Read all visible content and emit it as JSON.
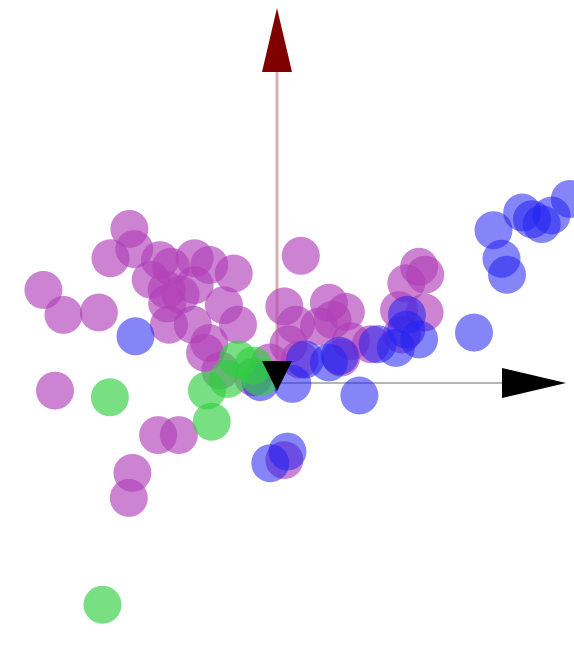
{
  "chart_data": {
    "type": "scatter",
    "title": "",
    "xlabel": "",
    "ylabel": "",
    "grid": false,
    "xlim": [
      -4.2,
      4.8
    ],
    "ylim": [
      -4.2,
      6.0
    ],
    "axes": {
      "x_arrow_color": "#000000",
      "y_arrow_color": "#800000",
      "y_arrow_shaft_color": "#d8b0b0",
      "origin_marker_color": "#000000"
    },
    "series": [
      {
        "color": "#b040b8",
        "opacity": 0.65,
        "points": [
          [
            -2.42,
            2.46
          ],
          [
            -2.34,
            2.13
          ],
          [
            -2.73,
            1.98
          ],
          [
            -1.92,
            1.95
          ],
          [
            -1.74,
            1.84
          ],
          [
            -1.35,
            1.98
          ],
          [
            -1.11,
            1.87
          ],
          [
            -0.71,
            1.73
          ],
          [
            -3.83,
            1.46
          ],
          [
            -3.5,
            1.05
          ],
          [
            -2.92,
            1.09
          ],
          [
            -2.07,
            1.63
          ],
          [
            -1.81,
            1.46
          ],
          [
            -1.58,
            1.38
          ],
          [
            -1.35,
            1.54
          ],
          [
            -1.8,
            1.24
          ],
          [
            -1.77,
            0.89
          ],
          [
            -0.87,
            1.21
          ],
          [
            -1.38,
            0.89
          ],
          [
            -0.64,
            0.89
          ],
          [
            -1.11,
            0.59
          ],
          [
            -1.18,
            0.43
          ],
          [
            -0.93,
            0.14
          ],
          [
            -0.39,
            0.03
          ],
          [
            -0.12,
            0.27
          ],
          [
            0.39,
            2.02
          ],
          [
            0.12,
            1.19
          ],
          [
            0.31,
            0.89
          ],
          [
            0.19,
            0.57
          ],
          [
            0.37,
            0.32
          ],
          [
            0.69,
            0.86
          ],
          [
            0.91,
            0.97
          ],
          [
            0.85,
            1.25
          ],
          [
            1.13,
            1.1
          ],
          [
            1.21,
            0.62
          ],
          [
            1.05,
            0.35
          ],
          [
            1.54,
            0.57
          ],
          [
            2.05,
            0.73
          ],
          [
            2.0,
            1.13
          ],
          [
            2.12,
            1.57
          ],
          [
            2.43,
            1.71
          ],
          [
            2.42,
            1.09
          ],
          [
            2.33,
            1.84
          ],
          [
            -3.64,
            -0.19
          ],
          [
            -1.61,
            -0.92
          ],
          [
            -1.95,
            -0.92
          ],
          [
            -2.37,
            -1.54
          ],
          [
            -2.43,
            -1.95
          ],
          [
            0.12,
            -1.33
          ]
        ]
      },
      {
        "color": "#2020f0",
        "opacity": 0.55,
        "points": [
          [
            -2.32,
            0.7
          ],
          [
            0.46,
            0.32
          ],
          [
            0.85,
            0.27
          ],
          [
            1.03,
            0.38
          ],
          [
            1.65,
            0.57
          ],
          [
            1.95,
            0.51
          ],
          [
            2.12,
            0.81
          ],
          [
            2.33,
            0.65
          ],
          [
            2.13,
            1.05
          ],
          [
            3.23,
            0.76
          ],
          [
            3.68,
            1.97
          ],
          [
            3.77,
            1.71
          ],
          [
            3.55,
            2.44
          ],
          [
            4.02,
            2.73
          ],
          [
            4.18,
            2.62
          ],
          [
            4.34,
            2.54
          ],
          [
            4.5,
            2.68
          ],
          [
            4.8,
            2.95
          ],
          [
            0.25,
            -0.08
          ],
          [
            -0.27,
            -0.05
          ],
          [
            1.35,
            -0.27
          ],
          [
            0.17,
            -1.19
          ],
          [
            -0.11,
            -1.38
          ]
        ]
      },
      {
        "color": "#30d040",
        "opacity": 0.65,
        "points": [
          [
            -0.64,
            0.32
          ],
          [
            -0.39,
            0.22
          ],
          [
            -0.27,
            0.03
          ],
          [
            -0.81,
            0.0
          ],
          [
            -1.15,
            -0.19
          ],
          [
            -2.74,
            -0.3
          ],
          [
            -1.07,
            -0.7
          ],
          [
            -2.86,
            -3.7
          ]
        ]
      }
    ]
  }
}
